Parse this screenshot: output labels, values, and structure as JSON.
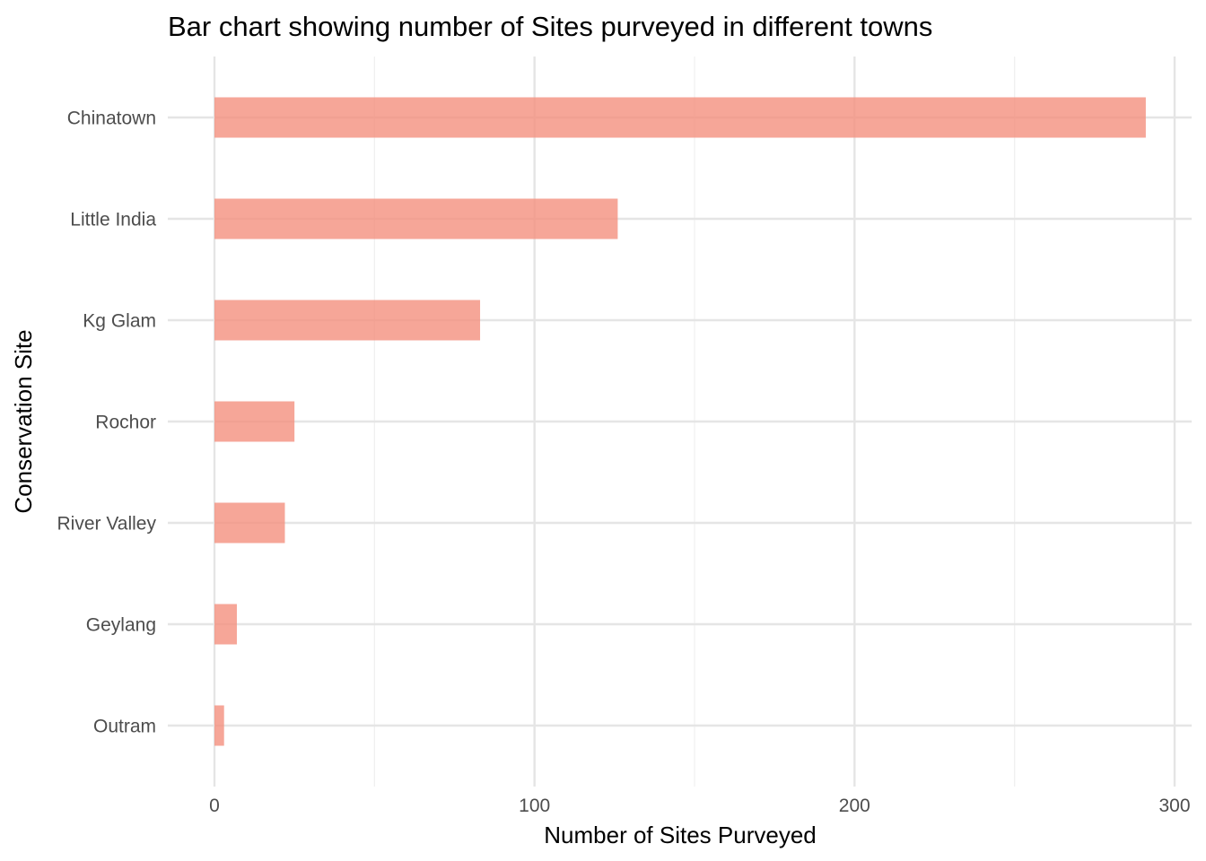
{
  "chart_data": {
    "type": "bar",
    "orientation": "horizontal",
    "title": "Bar chart showing number of Sites purveyed in different towns",
    "xlabel": "Number of Sites Purveyed",
    "ylabel": "Conservation Site",
    "categories": [
      "Chinatown",
      "Little India",
      "Kg Glam",
      "Rochor",
      "River Valley",
      "Geylang",
      "Outram"
    ],
    "values": [
      291,
      126,
      83,
      25,
      22,
      7,
      3
    ],
    "xlim": [
      0,
      300
    ],
    "xticks": [
      0,
      100,
      200,
      300
    ],
    "bar_color": "#f4907e",
    "grid": true,
    "legend": "none"
  }
}
